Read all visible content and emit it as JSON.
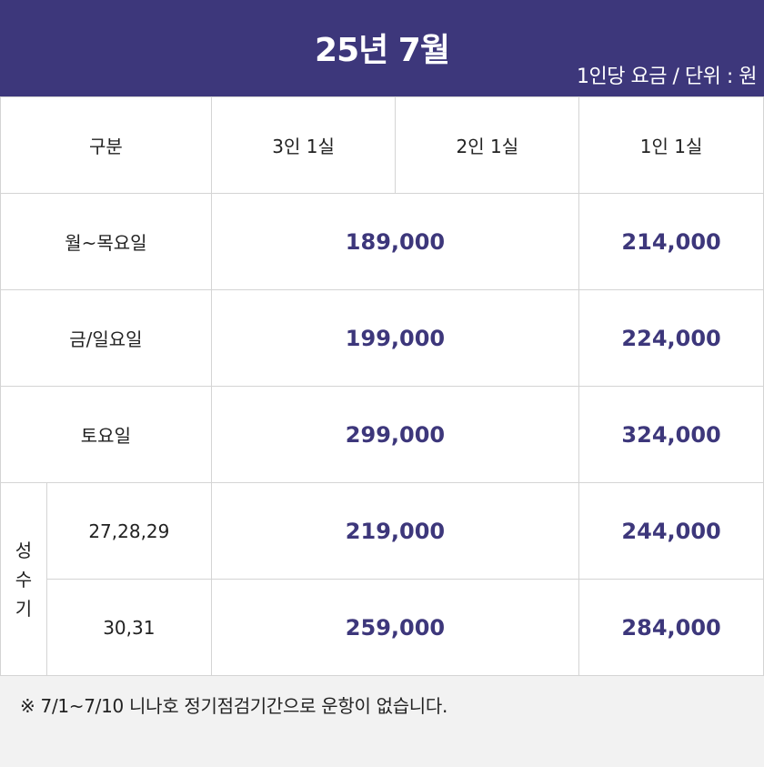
{
  "header": {
    "title": "25년 7월",
    "unit": "1인당 요금 / 단위 : 원"
  },
  "table": {
    "headers": {
      "category": "구분",
      "col1": "3인 1실",
      "col2": "2인 1실",
      "col3": "1인 1실"
    },
    "rows": [
      {
        "label": "월~목요일",
        "shared": "189,000",
        "single": "214,000"
      },
      {
        "label": "금/일요일",
        "shared": "199,000",
        "single": "224,000"
      },
      {
        "label": "토요일",
        "shared": "299,000",
        "single": "324,000"
      }
    ],
    "peak": {
      "chars": [
        "성",
        "수",
        "기"
      ],
      "rows": [
        {
          "label": "27,28,29",
          "shared": "219,000",
          "single": "244,000"
        },
        {
          "label": "30,31",
          "shared": "259,000",
          "single": "284,000"
        }
      ]
    }
  },
  "note": "※ 7/1~7/10 니나호 정기점검기간으로 운항이 없습니다."
}
